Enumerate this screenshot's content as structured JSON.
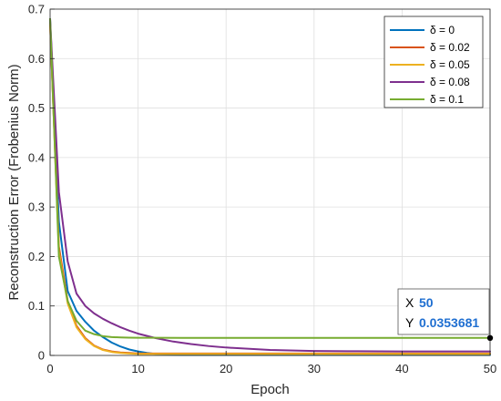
{
  "chart_data": {
    "type": "line",
    "title": "",
    "xlabel": "Epoch",
    "ylabel": "Reconstruction Error (Frobenius Norm)",
    "xlim": [
      0,
      50
    ],
    "ylim": [
      0,
      0.7
    ],
    "xticks": [
      0,
      10,
      20,
      30,
      40,
      50
    ],
    "yticks": [
      0,
      0.1,
      0.2,
      0.3,
      0.4,
      0.5,
      0.6,
      0.7
    ],
    "grid": true,
    "legend_position": "top-right",
    "series": [
      {
        "name": "δ = 0",
        "color": "#0072bd",
        "x": [
          0,
          1,
          2,
          3,
          4,
          5,
          6,
          7,
          8,
          9,
          10,
          11,
          12,
          13,
          14,
          15,
          20,
          30,
          40,
          50
        ],
        "y": [
          0.68,
          0.27,
          0.13,
          0.09,
          0.068,
          0.05,
          0.037,
          0.026,
          0.018,
          0.012,
          0.008,
          0.005,
          0.003,
          0.002,
          0.0015,
          0.001,
          0.001,
          0.001,
          0.001,
          0.001
        ]
      },
      {
        "name": "δ = 0.02",
        "color": "#d95319",
        "x": [
          0,
          1,
          2,
          3,
          4,
          5,
          6,
          7,
          8,
          9,
          10,
          12,
          15,
          20,
          30,
          40,
          50
        ],
        "y": [
          0.67,
          0.22,
          0.11,
          0.06,
          0.035,
          0.02,
          0.012,
          0.008,
          0.006,
          0.005,
          0.004,
          0.004,
          0.004,
          0.004,
          0.004,
          0.004,
          0.004
        ]
      },
      {
        "name": "δ = 0.05",
        "color": "#edb120",
        "x": [
          0,
          1,
          2,
          3,
          4,
          5,
          6,
          7,
          8,
          9,
          10,
          12,
          15,
          20,
          30,
          40,
          50
        ],
        "y": [
          0.67,
          0.21,
          0.105,
          0.057,
          0.033,
          0.019,
          0.011,
          0.007,
          0.005,
          0.004,
          0.003,
          0.003,
          0.003,
          0.003,
          0.003,
          0.003,
          0.003
        ]
      },
      {
        "name": "δ = 0.08",
        "color": "#7e2f8e",
        "x": [
          0,
          1,
          2,
          3,
          4,
          5,
          6,
          7,
          8,
          9,
          10,
          12,
          14,
          16,
          18,
          20,
          25,
          30,
          35,
          40,
          45,
          50
        ],
        "y": [
          0.68,
          0.33,
          0.19,
          0.125,
          0.1,
          0.085,
          0.074,
          0.065,
          0.057,
          0.05,
          0.044,
          0.035,
          0.028,
          0.023,
          0.019,
          0.016,
          0.011,
          0.009,
          0.0085,
          0.008,
          0.008,
          0.008
        ]
      },
      {
        "name": "δ = 0.1",
        "color": "#77ac30",
        "x": [
          0,
          1,
          2,
          3,
          4,
          5,
          6,
          7,
          8,
          9,
          10,
          12,
          15,
          20,
          30,
          40,
          50
        ],
        "y": [
          0.68,
          0.2,
          0.11,
          0.07,
          0.05,
          0.043,
          0.039,
          0.037,
          0.0365,
          0.036,
          0.0358,
          0.0356,
          0.0355,
          0.0354,
          0.0354,
          0.0354,
          0.0353681
        ]
      }
    ],
    "datatip": {
      "x_label": "X",
      "x_value": "50",
      "y_label": "Y",
      "y_value": "0.0353681",
      "x": 50,
      "y": 0.0353681
    }
  }
}
